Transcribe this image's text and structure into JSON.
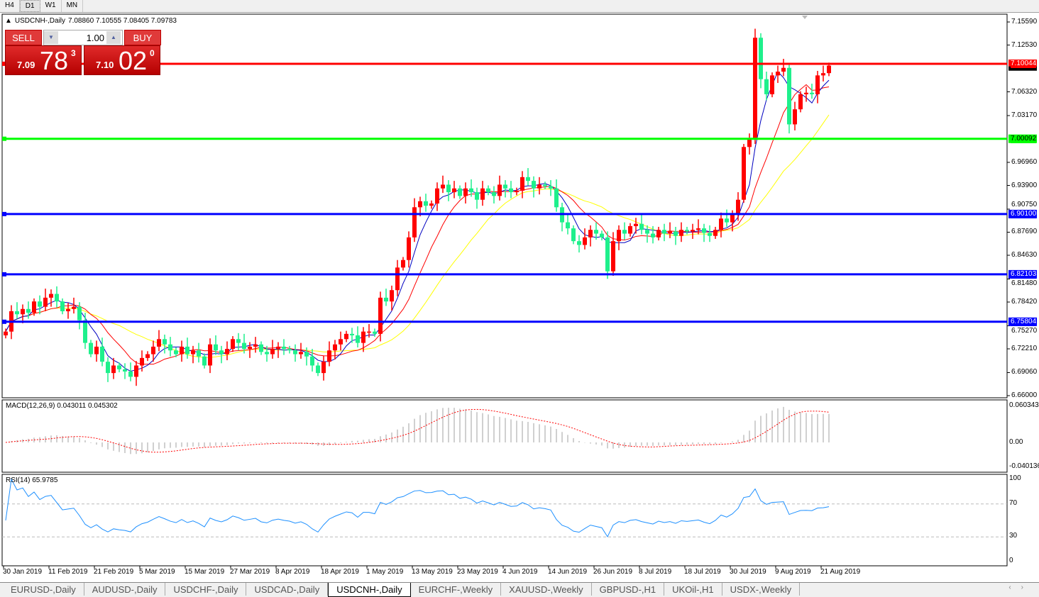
{
  "timeframes": [
    "H4",
    "D1",
    "W1",
    "MN"
  ],
  "selected_timeframe": "D1",
  "header": {
    "symbol": "USDCNH-,Daily",
    "ohlc": "7.08860 7.10555 7.08405 7.09783"
  },
  "trade": {
    "sell_label": "SELL",
    "buy_label": "BUY",
    "lot": "1.00",
    "sell": {
      "big": "7.09",
      "pips": "78",
      "frac": "3"
    },
    "buy": {
      "big": "7.10",
      "pips": "02",
      "frac": "0"
    }
  },
  "price_axis": [
    "7.15590",
    "7.12530",
    "7.06320",
    "7.03170",
    "6.96960",
    "6.93900",
    "6.90750",
    "6.87690",
    "6.84630",
    "6.81480",
    "6.78420",
    "6.75270",
    "6.72210",
    "6.69060",
    "6.66000"
  ],
  "current_price": "7.09783",
  "hlines": [
    {
      "price": "7.10044",
      "color": "#ff0000"
    },
    {
      "price": "7.00092",
      "color": "#00ff00"
    },
    {
      "price": "6.90100",
      "color": "#0000ff"
    },
    {
      "price": "6.82103",
      "color": "#0000ff"
    },
    {
      "price": "6.75804",
      "color": "#0000ff"
    }
  ],
  "macd": {
    "label": "MACD(12,26,9) 0.043011 0.045302",
    "axis": [
      "0.060343",
      "0.00",
      "-0.040136"
    ]
  },
  "rsi": {
    "label": "RSI(14) 65.9785",
    "axis": [
      "100",
      "70",
      "30",
      "0"
    ]
  },
  "date_axis": [
    "30 Jan 2019",
    "11 Feb 2019",
    "21 Feb 2019",
    "5 Mar 2019",
    "15 Mar 2019",
    "27 Mar 2019",
    "8 Apr 2019",
    "18 Apr 2019",
    "1 May 2019",
    "13 May 2019",
    "23 May 2019",
    "4 Jun 2019",
    "14 Jun 2019",
    "26 Jun 2019",
    "8 Jul 2019",
    "18 Jul 2019",
    "30 Jul 2019",
    "9 Aug 2019",
    "21 Aug 2019"
  ],
  "tabs": [
    "EURUSD-,Daily",
    "AUDUSD-,Daily",
    "USDCHF-,Daily",
    "USDCAD-,Daily",
    "USDCNH-,Daily",
    "EURCHF-,Weekly",
    "XAUUSD-,Weekly",
    "GBPUSD-,H1",
    "UKOil-,H1",
    "USDX-,Weekly"
  ],
  "active_tab": "USDCNH-,Daily",
  "colors": {
    "bull": "#ff0000",
    "bear": "#1ef08c",
    "ma_fast": "#0000c0",
    "ma_mid": "#ff0000",
    "ma_slow": "#ffff00",
    "macd_hist": "#a0a0a0",
    "macd_signal": "#ff0000",
    "rsi": "#1e90ff"
  },
  "chart_data": {
    "type": "candlestick",
    "symbol": "USDCNH",
    "timeframe": "Daily",
    "ylim": [
      6.66,
      7.1559
    ],
    "closes": [
      6.745,
      6.772,
      6.768,
      6.775,
      6.77,
      6.785,
      6.778,
      6.79,
      6.795,
      6.785,
      6.772,
      6.775,
      6.778,
      6.76,
      6.73,
      6.715,
      6.725,
      6.705,
      6.69,
      6.7,
      6.695,
      6.692,
      6.685,
      6.7,
      6.71,
      6.715,
      6.725,
      6.735,
      6.728,
      6.72,
      6.715,
      6.725,
      6.715,
      6.72,
      6.712,
      6.7,
      6.728,
      6.72,
      6.715,
      6.722,
      6.735,
      6.73,
      6.722,
      6.725,
      6.728,
      6.718,
      6.715,
      6.722,
      6.725,
      6.722,
      6.72,
      6.715,
      6.718,
      6.712,
      6.7,
      6.69,
      6.705,
      6.72,
      6.728,
      6.735,
      6.742,
      6.74,
      6.73,
      6.745,
      6.745,
      6.742,
      6.79,
      6.785,
      6.8,
      6.83,
      6.84,
      6.87,
      6.91,
      6.918,
      6.912,
      6.915,
      6.935,
      6.94,
      6.93,
      6.935,
      6.925,
      6.935,
      6.93,
      6.92,
      6.935,
      6.93,
      6.925,
      6.94,
      6.935,
      6.93,
      6.932,
      6.95,
      6.945,
      6.935,
      6.94,
      6.938,
      6.935,
      6.91,
      6.89,
      6.882,
      6.865,
      6.86,
      6.87,
      6.88,
      6.875,
      6.87,
      6.825,
      6.865,
      6.88,
      6.875,
      6.885,
      6.888,
      6.88,
      6.875,
      6.87,
      6.88,
      6.875,
      6.878,
      6.872,
      6.88,
      6.878,
      6.88,
      6.882,
      6.876,
      6.872,
      6.88,
      6.895,
      6.89,
      6.9,
      6.92,
      6.99,
      7.0,
      7.135,
      7.08,
      7.06,
      7.085,
      7.09,
      7.095,
      7.02,
      7.04,
      7.06,
      7.062,
      7.06,
      7.085,
      7.088,
      7.098
    ]
  }
}
